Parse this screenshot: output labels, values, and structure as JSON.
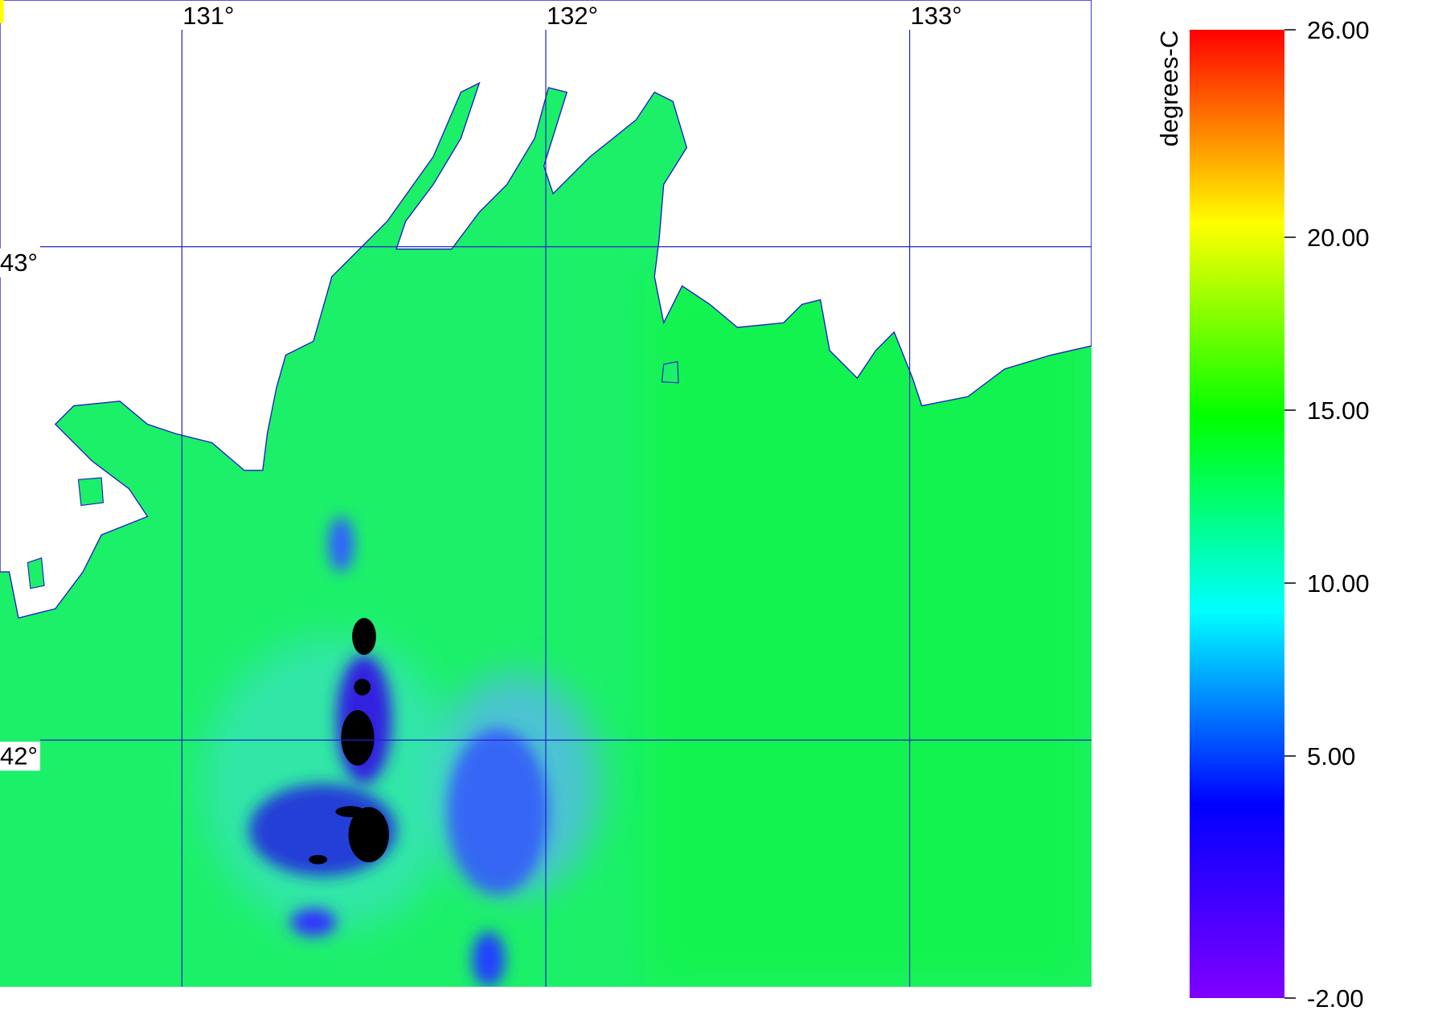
{
  "map": {
    "xlim": [
      130.5,
      133.5
    ],
    "ylim": [
      41.5,
      43.5
    ],
    "lon_ticks": [
      {
        "value": 131,
        "label": "131°"
      },
      {
        "value": 132,
        "label": "132°"
      },
      {
        "value": 133,
        "label": "133°"
      }
    ],
    "lat_ticks": [
      {
        "value": 43,
        "label": "43°"
      },
      {
        "value": 42,
        "label": "42°"
      }
    ],
    "grid_color": "#2020c8"
  },
  "colorbar": {
    "label": "degrees-C",
    "lim": [
      -2,
      26
    ],
    "ticks": [
      {
        "value": 26,
        "label": "26.00"
      },
      {
        "value": 20,
        "label": "20.00"
      },
      {
        "value": 15,
        "label": "15.00"
      },
      {
        "value": 10,
        "label": "10.00"
      },
      {
        "value": 5,
        "label": "5.00"
      },
      {
        "value": -2,
        "label": "-2.00"
      }
    ],
    "colors": [
      "#8000ff",
      "#0000ff",
      "#00ffff",
      "#00ff00",
      "#ffff00",
      "#ff0000"
    ]
  }
}
